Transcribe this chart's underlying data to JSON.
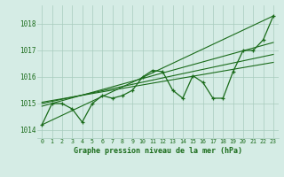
{
  "x": [
    0,
    1,
    2,
    3,
    4,
    5,
    6,
    7,
    8,
    9,
    10,
    11,
    12,
    13,
    14,
    15,
    16,
    17,
    18,
    19,
    20,
    21,
    22,
    23
  ],
  "line1": [
    1014.2,
    1015.0,
    1015.0,
    1014.8,
    1014.3,
    1015.0,
    1015.3,
    1015.2,
    1015.3,
    1015.5,
    1016.0,
    1016.25,
    1016.2,
    1015.5,
    1015.2,
    1016.05,
    1015.8,
    1015.2,
    1015.2,
    1016.2,
    1017.0,
    1017.0,
    1017.4,
    1018.3
  ],
  "trend_lines": [
    [
      [
        0,
        1014.2
      ],
      [
        23,
        1018.3
      ]
    ],
    [
      [
        0,
        1014.9
      ],
      [
        23,
        1017.3
      ]
    ],
    [
      [
        0,
        1015.0
      ],
      [
        23,
        1016.85
      ]
    ],
    [
      [
        0,
        1015.05
      ],
      [
        23,
        1016.55
      ]
    ]
  ],
  "bg_color": "#d5ece5",
  "grid_color": "#a8ccbe",
  "line_color": "#1a6b1a",
  "ylabel_ticks": [
    1014,
    1015,
    1016,
    1017,
    1018
  ],
  "xlabel": "Graphe pression niveau de la mer (hPa)",
  "ylim": [
    1013.7,
    1018.7
  ],
  "xlim": [
    -0.5,
    23.5
  ]
}
